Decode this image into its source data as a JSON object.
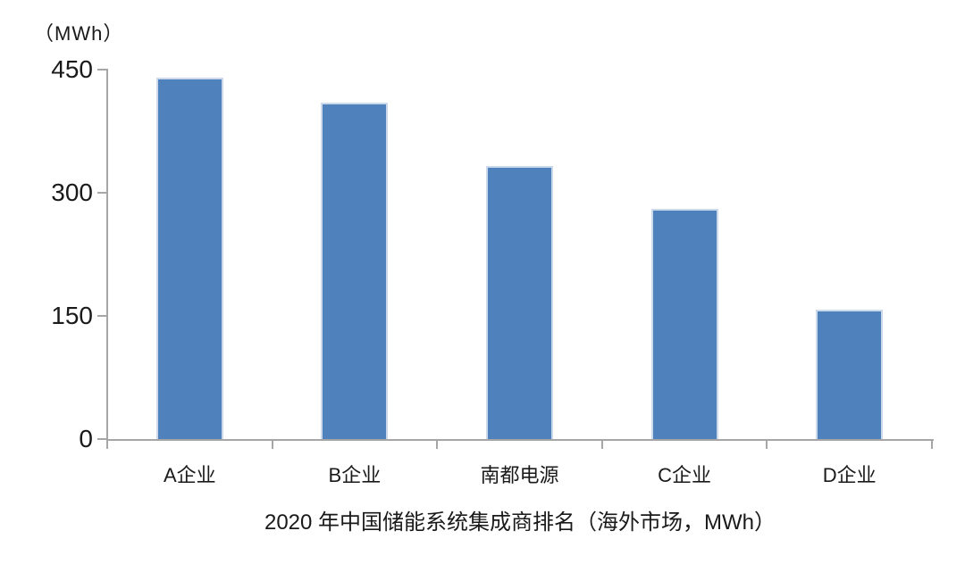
{
  "chart_data": {
    "type": "bar",
    "title": "2020 年中国储能系统集成商排名（海外市场，MWh）",
    "ylabel": "（MWh）",
    "categories": [
      "A企业",
      "B企业",
      "南都电源",
      "C企业",
      "D企业"
    ],
    "values": [
      440,
      410,
      333,
      280,
      158
    ],
    "ylim": [
      0,
      450
    ],
    "yticks": [
      450,
      300,
      150,
      0
    ],
    "grid": false,
    "legend": false,
    "bar_color": "#4f81bd",
    "bar_edge_color": "#ccd9eb",
    "axis_color": "#a6a6a6",
    "text_color": "#1a1a1a"
  }
}
